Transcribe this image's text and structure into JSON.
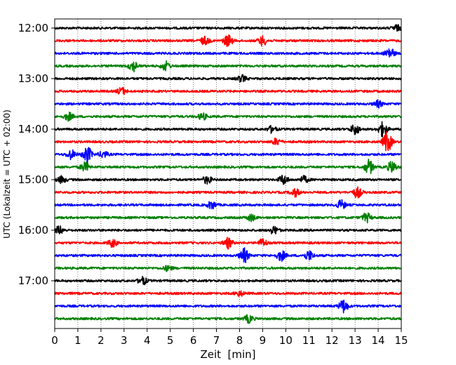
{
  "chart_data": {
    "type": "line",
    "title": "",
    "xlabel": "Zeit  [min]",
    "ylabel": "UTC (Lokalzeit = UTC + 02:00)",
    "xlim": [
      0,
      15
    ],
    "x_ticks": [
      "0",
      "1",
      "2",
      "3",
      "4",
      "5",
      "6",
      "7",
      "8",
      "9",
      "10",
      "11",
      "12",
      "13",
      "14",
      "15"
    ],
    "y_ticks": [
      "12:00",
      "13:00",
      "14:00",
      "15:00",
      "16:00",
      "17:00"
    ],
    "grid": "vertical dotted lines at each minute",
    "trace_interval_minutes": 15,
    "color_cycle": [
      "#000000",
      "#ff0000",
      "#0000ff",
      "#008000"
    ],
    "traces": [
      {
        "start": "12:00",
        "color": "#000000",
        "bursts": [
          {
            "x": 14.8,
            "amp": 0.9
          }
        ]
      },
      {
        "start": "12:15",
        "color": "#ff0000",
        "bursts": [
          {
            "x": 6.5,
            "amp": 1.2
          },
          {
            "x": 7.5,
            "amp": 1.8
          },
          {
            "x": 9.0,
            "amp": 1.5
          }
        ]
      },
      {
        "start": "12:30",
        "color": "#0000ff",
        "bursts": [
          {
            "x": 14.5,
            "amp": 1.8
          }
        ]
      },
      {
        "start": "12:45",
        "color": "#008000",
        "bursts": [
          {
            "x": 3.4,
            "amp": 1.6
          },
          {
            "x": 4.8,
            "amp": 1.4
          }
        ]
      },
      {
        "start": "13:00",
        "color": "#000000",
        "bursts": [
          {
            "x": 8.1,
            "amp": 1.0
          }
        ]
      },
      {
        "start": "13:15",
        "color": "#ff0000",
        "bursts": [
          {
            "x": 2.9,
            "amp": 1.1
          }
        ]
      },
      {
        "start": "13:30",
        "color": "#0000ff",
        "bursts": [
          {
            "x": 14.0,
            "amp": 1.0
          }
        ]
      },
      {
        "start": "13:45",
        "color": "#008000",
        "bursts": [
          {
            "x": 0.6,
            "amp": 1.2
          },
          {
            "x": 6.4,
            "amp": 1.0
          }
        ]
      },
      {
        "start": "14:00",
        "color": "#000000",
        "bursts": [
          {
            "x": 9.4,
            "amp": 1.0
          },
          {
            "x": 13.0,
            "amp": 1.6
          },
          {
            "x": 14.2,
            "amp": 2.2
          }
        ]
      },
      {
        "start": "14:15",
        "color": "#ff0000",
        "bursts": [
          {
            "x": 9.6,
            "amp": 1.0
          },
          {
            "x": 14.4,
            "amp": 3.2
          }
        ]
      },
      {
        "start": "14:30",
        "color": "#0000ff",
        "bursts": [
          {
            "x": 0.7,
            "amp": 1.4
          },
          {
            "x": 1.4,
            "amp": 2.6
          },
          {
            "x": 2.1,
            "amp": 1.0
          }
        ]
      },
      {
        "start": "14:45",
        "color": "#008000",
        "bursts": [
          {
            "x": 1.3,
            "amp": 1.4
          },
          {
            "x": 13.6,
            "amp": 2.2
          },
          {
            "x": 14.6,
            "amp": 1.8
          }
        ]
      },
      {
        "start": "15:00",
        "color": "#000000",
        "bursts": [
          {
            "x": 0.3,
            "amp": 1.0
          },
          {
            "x": 6.6,
            "amp": 1.2
          },
          {
            "x": 9.9,
            "amp": 1.5
          },
          {
            "x": 10.8,
            "amp": 1.0
          }
        ]
      },
      {
        "start": "15:15",
        "color": "#ff0000",
        "bursts": [
          {
            "x": 10.4,
            "amp": 1.2
          },
          {
            "x": 13.1,
            "amp": 1.6
          }
        ]
      },
      {
        "start": "15:30",
        "color": "#0000ff",
        "bursts": [
          {
            "x": 6.8,
            "amp": 1.2
          },
          {
            "x": 12.4,
            "amp": 1.4
          }
        ]
      },
      {
        "start": "15:45",
        "color": "#008000",
        "bursts": [
          {
            "x": 8.5,
            "amp": 1.0
          },
          {
            "x": 13.5,
            "amp": 1.4
          }
        ]
      },
      {
        "start": "16:00",
        "color": "#000000",
        "bursts": [
          {
            "x": 0.2,
            "amp": 1.2
          },
          {
            "x": 9.5,
            "amp": 1.2
          }
        ]
      },
      {
        "start": "16:15",
        "color": "#ff0000",
        "bursts": [
          {
            "x": 2.5,
            "amp": 1.2
          },
          {
            "x": 7.5,
            "amp": 1.6
          },
          {
            "x": 9.0,
            "amp": 1.2
          }
        ]
      },
      {
        "start": "16:30",
        "color": "#0000ff",
        "bursts": [
          {
            "x": 8.2,
            "amp": 2.2
          },
          {
            "x": 9.8,
            "amp": 1.6
          },
          {
            "x": 11.0,
            "amp": 1.5
          }
        ]
      },
      {
        "start": "16:45",
        "color": "#008000",
        "bursts": [
          {
            "x": 4.9,
            "amp": 0.8
          }
        ]
      },
      {
        "start": "17:00",
        "color": "#000000",
        "bursts": [
          {
            "x": 3.8,
            "amp": 1.2
          }
        ]
      },
      {
        "start": "17:15",
        "color": "#ff0000",
        "bursts": [
          {
            "x": 8.0,
            "amp": 0.8
          }
        ]
      },
      {
        "start": "17:30",
        "color": "#0000ff",
        "bursts": [
          {
            "x": 12.5,
            "amp": 2.0
          }
        ]
      },
      {
        "start": "17:45",
        "color": "#008000",
        "bursts": [
          {
            "x": 8.4,
            "amp": 1.2
          }
        ]
      }
    ]
  }
}
